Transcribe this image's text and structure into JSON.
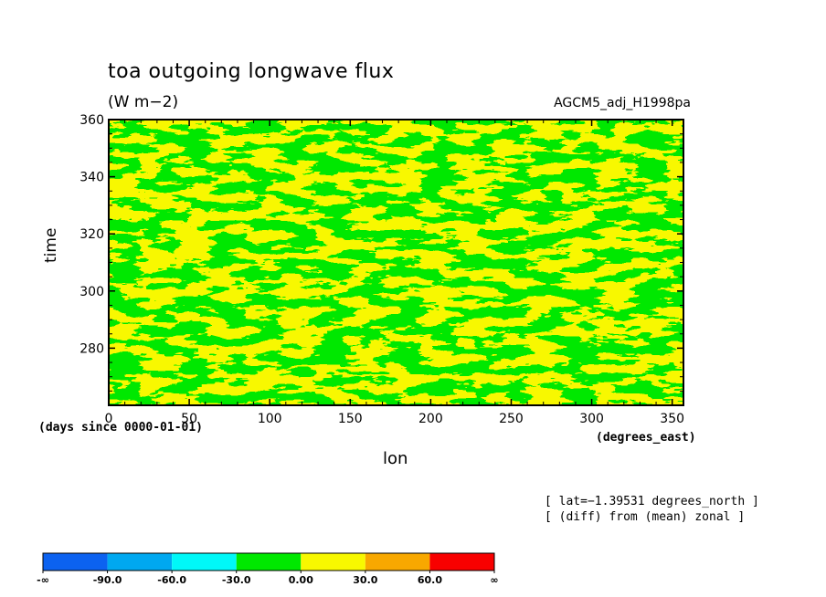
{
  "chart_data": {
    "type": "heatmap",
    "title": "toa outgoing longwave flux",
    "units": "(W m−2)",
    "dataset": "AGCM5_adj_H1998pa",
    "xlabel": "lon",
    "xunits": "(degrees_east)",
    "ylabel": "time",
    "yunits": "(days since 0000-01-01)",
    "xlim": [
      0,
      357
    ],
    "ylim": [
      260,
      360
    ],
    "xticks": [
      0,
      50,
      100,
      150,
      200,
      250,
      300,
      350
    ],
    "yticks": [
      280,
      300,
      320,
      340,
      360
    ],
    "notes": [
      "[ lat=−1.39531 degrees_north ]",
      "[ (diff) from (mean) zonal ]"
    ],
    "colorbar": {
      "bins": [
        {
          "from": "-∞",
          "to": "-90.0",
          "color": "#0c62f0"
        },
        {
          "from": "-90.0",
          "to": "-60.0",
          "color": "#00a8f0"
        },
        {
          "from": "-60.0",
          "to": "-30.0",
          "color": "#00f8f8"
        },
        {
          "from": "-30.0",
          "to": "0.00",
          "color": "#00e800"
        },
        {
          "from": "0.00",
          "to": "30.0",
          "color": "#f8f800"
        },
        {
          "from": "30.0",
          "to": "60.0",
          "color": "#f8a800"
        },
        {
          "from": "60.0",
          "to": "∞",
          "color": "#f80000"
        }
      ],
      "tick_labels": [
        "-∞",
        "-90.0",
        "-60.0",
        "-30.0",
        "0.00",
        "30.0",
        "60.0",
        "∞"
      ]
    },
    "field_description": "Anomaly field alternates between the -30.0–0.00 (green) and 0.00–30.0 (yellow) bins across all longitudes and times; roughly 50% coverage each.",
    "dominant_bins": [
      "-30.0 to 0.00",
      "0.00 to 30.0"
    ]
  }
}
